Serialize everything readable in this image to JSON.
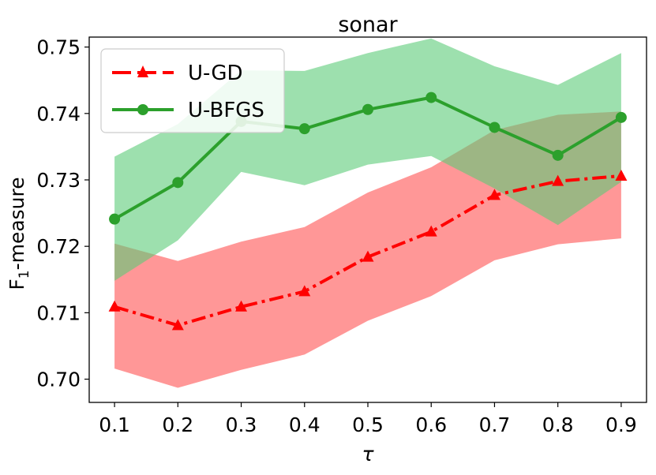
{
  "chart_data": {
    "type": "line",
    "title": "sonar",
    "xlabel": "τ",
    "ylabel_main": "F",
    "ylabel_sub": "1",
    "ylabel_rest": "-measure",
    "x": [
      0.1,
      0.2,
      0.3,
      0.4,
      0.5,
      0.6,
      0.7,
      0.8,
      0.9
    ],
    "x_tick_labels": [
      "0.1",
      "0.2",
      "0.3",
      "0.4",
      "0.5",
      "0.6",
      "0.7",
      "0.8",
      "0.9"
    ],
    "y_ticks": [
      0.7,
      0.71,
      0.72,
      0.73,
      0.74,
      0.75
    ],
    "y_tick_labels": [
      "0.70",
      "0.71",
      "0.72",
      "0.73",
      "0.74",
      "0.75"
    ],
    "xlim": [
      0.06,
      0.94
    ],
    "ylim": [
      0.6965,
      0.7515
    ],
    "legend_position": "upper-left",
    "series": [
      {
        "name": "U-GD",
        "color": "#ff0000",
        "band_color": "#ff6b6b",
        "marker": "triangle",
        "linestyle": "dashdot",
        "values": [
          0.7109,
          0.7081,
          0.7109,
          0.7132,
          0.7184,
          0.7222,
          0.7277,
          0.7298,
          0.7306
        ],
        "upper": [
          0.7204,
          0.7178,
          0.7207,
          0.7229,
          0.7281,
          0.7319,
          0.7375,
          0.7398,
          0.7403
        ],
        "lower": [
          0.7016,
          0.6987,
          0.7014,
          0.7037,
          0.7088,
          0.7125,
          0.7179,
          0.7203,
          0.7212
        ]
      },
      {
        "name": "U-BFGS",
        "color": "#2ca02c",
        "band_color": "#5ccc78",
        "marker": "circle",
        "linestyle": "solid",
        "values": [
          0.7241,
          0.7296,
          0.7388,
          0.7377,
          0.7406,
          0.7424,
          0.7379,
          0.7337,
          0.7394
        ],
        "upper": [
          0.7335,
          0.7384,
          0.7465,
          0.7464,
          0.7491,
          0.7513,
          0.7471,
          0.7443,
          0.7491
        ],
        "lower": [
          0.7148,
          0.7209,
          0.7312,
          0.7292,
          0.7323,
          0.7336,
          0.7287,
          0.7232,
          0.7297
        ]
      }
    ]
  }
}
